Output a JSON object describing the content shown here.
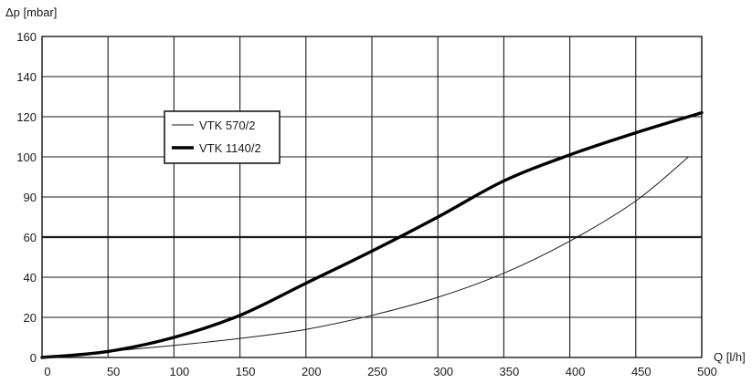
{
  "chart_data": {
    "type": "line",
    "title": "",
    "xlabel": "Q [l/h]",
    "ylabel": "Δp [mbar]",
    "xlim": [
      0,
      500
    ],
    "x_ticks": [
      "0",
      "50",
      "100",
      "150",
      "200",
      "250",
      "300",
      "350",
      "400",
      "450",
      "500"
    ],
    "y_ticks": [
      "0",
      "20",
      "40",
      "60",
      "90",
      "100",
      "120",
      "140",
      "160"
    ],
    "grid": true,
    "highlight_gridline_label": "60",
    "legend": {
      "position": "upper-left"
    },
    "series": [
      {
        "name": "VTK 570/2",
        "line_weight": "thin",
        "color": "#1a1a1a",
        "points": [
          [
            0,
            0
          ],
          [
            50,
            3
          ],
          [
            100,
            6
          ],
          [
            150,
            9.5
          ],
          [
            200,
            14
          ],
          [
            250,
            21
          ],
          [
            300,
            30
          ],
          [
            350,
            42
          ],
          [
            400,
            58
          ],
          [
            450,
            78
          ],
          [
            490,
            100
          ]
        ]
      },
      {
        "name": "VTK 1140/2",
        "line_weight": "thick",
        "color": "#000000",
        "points": [
          [
            0,
            0
          ],
          [
            50,
            3
          ],
          [
            100,
            10
          ],
          [
            150,
            21
          ],
          [
            200,
            37
          ],
          [
            250,
            53
          ],
          [
            300,
            70
          ],
          [
            350,
            88
          ],
          [
            400,
            101
          ],
          [
            450,
            112
          ],
          [
            500,
            122
          ]
        ]
      }
    ]
  }
}
